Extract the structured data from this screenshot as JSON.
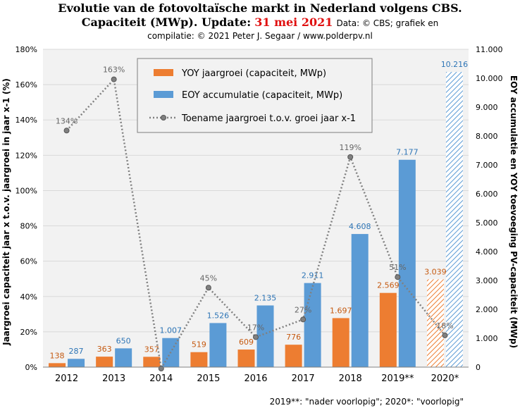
{
  "title": {
    "line1": "Evolutie  van de fotovoltaïsche  markt in Nederland volgens CBS.",
    "line2_main": "Capaciteit (MWp). Update:",
    "line2_date": "31 mei 2021",
    "line2_source": "Data: © CBS; grafiek en",
    "line3": "compilatie: © 2021 Peter J. Segaar / www.polderpv.nl"
  },
  "footnote": "2019**: \"nader voorlopig\"; 2020*: \"voorlopig\"",
  "colors": {
    "yoy": "#ed7d31",
    "eoy": "#5b9bd5",
    "line": "#808080",
    "yoy_label": "#c55a11",
    "eoy_label": "#2e75b6",
    "plot_bg": "#f2f2f2",
    "grid": "#d9d9d9"
  },
  "chart_data": {
    "type": "bar",
    "categories": [
      "2012",
      "2013",
      "2014",
      "2015",
      "2016",
      "2017",
      "2018",
      "2019**",
      "2020*"
    ],
    "series": [
      {
        "name": "YOY jaargroei (capaciteit, MWp)",
        "axis": "right",
        "values": [
          138,
          363,
          357,
          519,
          609,
          776,
          1697,
          2569,
          3039
        ],
        "labels": [
          "138",
          "363",
          "357",
          "519",
          "609",
          "776",
          "1.697",
          "2.569",
          "3.039"
        ]
      },
      {
        "name": "EOY accumulatie (capaciteit, MWp)",
        "axis": "right",
        "values": [
          287,
          650,
          1007,
          1526,
          2135,
          2911,
          4608,
          7177,
          10216
        ],
        "labels": [
          "287",
          "650",
          "1.007",
          "1.526",
          "2.135",
          "2.911",
          "4.608",
          "7.177",
          "10.216"
        ]
      },
      {
        "name": "Toename jaargroei t.o.v. groei jaar x-1",
        "axis": "left",
        "type": "line",
        "values": [
          134,
          163,
          -2,
          45,
          17,
          27,
          119,
          51,
          18
        ],
        "labels": [
          "134%",
          "163%",
          "",
          "45%",
          "17%",
          "27%",
          "119%",
          "51%",
          "18%"
        ]
      }
    ],
    "hatched_categories": [
      "2020*"
    ],
    "y_left": {
      "label": "Jaargroei capaciteit jaar x t.o.v. jaargroei in jaar x-1 (%)",
      "range": [
        0,
        180
      ],
      "ticks": [
        "0%",
        "20%",
        "40%",
        "60%",
        "80%",
        "100%",
        "120%",
        "140%",
        "160%",
        "180%"
      ]
    },
    "y_right": {
      "label": "EOY accumulatie en YOY toevoeging PV-capaciteit (MWp)",
      "range": [
        0,
        11000
      ],
      "ticks": [
        "0",
        "1.000",
        "2.000",
        "3.000",
        "4.000",
        "5.000",
        "6.000",
        "7.000",
        "8.000",
        "9.000",
        "10.000",
        "11.000"
      ]
    },
    "legend": {
      "position": "top-left",
      "items": [
        "YOY jaargroei (capaciteit, MWp)",
        "EOY accumulatie (capaciteit, MWp)",
        "Toename jaargroei t.o.v. groei jaar x-1"
      ]
    },
    "grid": true
  }
}
